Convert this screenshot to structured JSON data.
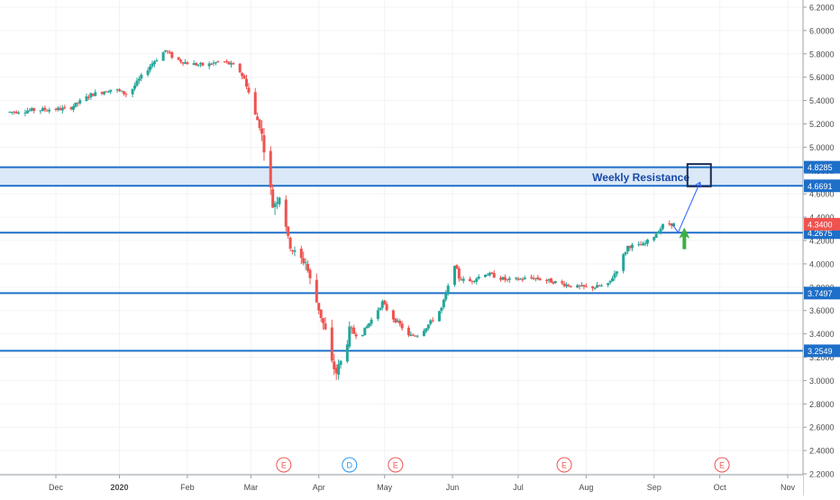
{
  "chart_data": {
    "type": "candlestick",
    "y_axis_side": "right",
    "ylim": [
      2.2,
      6.2
    ],
    "y_ticks": [
      "6.2000",
      "6.0000",
      "5.8000",
      "5.6000",
      "5.4000",
      "5.2000",
      "5.0000",
      "4.8000",
      "4.6000",
      "4.4000",
      "4.2000",
      "4.0000",
      "3.8000",
      "3.6000",
      "3.4000",
      "3.2000",
      "3.0000",
      "2.8000",
      "2.6000",
      "2.4000",
      "2.2000"
    ],
    "x_labels": [
      {
        "label": "Dec",
        "day": 14,
        "bold": false
      },
      {
        "label": "2020",
        "day": 43,
        "bold": true
      },
      {
        "label": "Feb",
        "day": 74,
        "bold": false
      },
      {
        "label": "Mar",
        "day": 103,
        "bold": false
      },
      {
        "label": "Apr",
        "day": 134,
        "bold": false
      },
      {
        "label": "May",
        "day": 164,
        "bold": false
      },
      {
        "label": "Jun",
        "day": 195,
        "bold": false
      },
      {
        "label": "Jul",
        "day": 225,
        "bold": false
      },
      {
        "label": "Aug",
        "day": 256,
        "bold": false
      },
      {
        "label": "Sep",
        "day": 287,
        "bold": false
      },
      {
        "label": "Oct",
        "day": 317,
        "bold": false
      },
      {
        "label": "Nov",
        "day": 348,
        "bold": false
      }
    ],
    "price_path": [
      [
        -8,
        5.3
      ],
      [
        5,
        5.32
      ],
      [
        20,
        5.33
      ],
      [
        30,
        5.45
      ],
      [
        40,
        5.5
      ],
      [
        47,
        5.45
      ],
      [
        52,
        5.58
      ],
      [
        58,
        5.72
      ],
      [
        64,
        5.83
      ],
      [
        68,
        5.76
      ],
      [
        74,
        5.72
      ],
      [
        82,
        5.7
      ],
      [
        90,
        5.74
      ],
      [
        97,
        5.68
      ],
      [
        101,
        5.55
      ],
      [
        104,
        5.3
      ],
      [
        107,
        5.2
      ],
      [
        110,
        4.9
      ],
      [
        113,
        4.5
      ],
      [
        117,
        4.62
      ],
      [
        120,
        4.2
      ],
      [
        124,
        4.05
      ],
      [
        128,
        4.02
      ],
      [
        131,
        3.78
      ],
      [
        134,
        3.62
      ],
      [
        137,
        3.42
      ],
      [
        139,
        3.18
      ],
      [
        142,
        3.07
      ],
      [
        145,
        3.2
      ],
      [
        148,
        3.42
      ],
      [
        153,
        3.38
      ],
      [
        158,
        3.52
      ],
      [
        163,
        3.67
      ],
      [
        167,
        3.55
      ],
      [
        171,
        3.48
      ],
      [
        175,
        3.38
      ],
      [
        180,
        3.4
      ],
      [
        185,
        3.5
      ],
      [
        190,
        3.62
      ],
      [
        193,
        3.8
      ],
      [
        195,
        4.06
      ],
      [
        198,
        3.88
      ],
      [
        202,
        3.84
      ],
      [
        210,
        3.92
      ],
      [
        220,
        3.86
      ],
      [
        232,
        3.88
      ],
      [
        243,
        3.84
      ],
      [
        252,
        3.8
      ],
      [
        260,
        3.8
      ],
      [
        266,
        3.82
      ],
      [
        270,
        3.95
      ],
      [
        275,
        4.15
      ],
      [
        282,
        4.16
      ],
      [
        287,
        4.24
      ],
      [
        292,
        4.35
      ],
      [
        296,
        4.34
      ]
    ],
    "earnings_days": [
      118,
      169,
      246,
      318
    ],
    "dividend_days": [
      148
    ],
    "levels": [
      {
        "value": 4.8285,
        "label": "4.8285"
      },
      {
        "value": 4.6691,
        "label": "4.6691"
      },
      {
        "value": 4.2675,
        "label": "4.2675"
      },
      {
        "value": 3.7497,
        "label": "3.7497"
      },
      {
        "value": 3.2549,
        "label": "3.2549"
      }
    ],
    "resistance_zone": [
      4.6691,
      4.8285
    ],
    "current_price": {
      "value": 4.34,
      "label": "4.3400"
    },
    "annotation": {
      "text": "Weekly Resistance"
    },
    "projection": {
      "from_day": 298,
      "from_value": 4.27,
      "to_day": 308,
      "to_value": 4.7
    },
    "arrow_up": {
      "day": 300,
      "value": 4.28
    }
  },
  "colors": {
    "up": "#26a69a",
    "down": "#ef5350",
    "level_line": "#1e6fc8",
    "zone_fill": "#dbe8f7",
    "annotation_text": "#1848a8",
    "price_tag": "#ef5350",
    "green_arrow": "#3cb043",
    "earnings": "#ef5350",
    "dividend": "#2196f3",
    "axis_text": "#4a4a4a"
  },
  "markers": {
    "earnings_letter": "E",
    "dividend_letter": "D"
  }
}
